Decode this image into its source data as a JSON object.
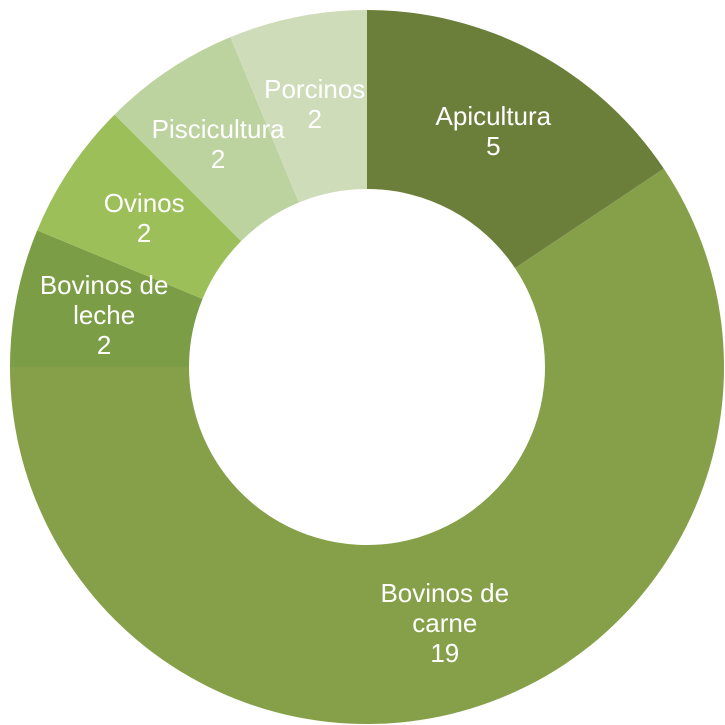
{
  "chart_data": {
    "type": "donut",
    "categories": [
      "Apicultura",
      "Bovinos de carne",
      "Bovinos de leche",
      "Ovinos",
      "Piscicultura",
      "Porcinos"
    ],
    "values": [
      5,
      19,
      2,
      2,
      2,
      2
    ],
    "colors": [
      "#6b7f3a",
      "#86a04a",
      "#7a9d45",
      "#9dbf5a",
      "#bcd3a0",
      "#cfdcb9"
    ]
  }
}
